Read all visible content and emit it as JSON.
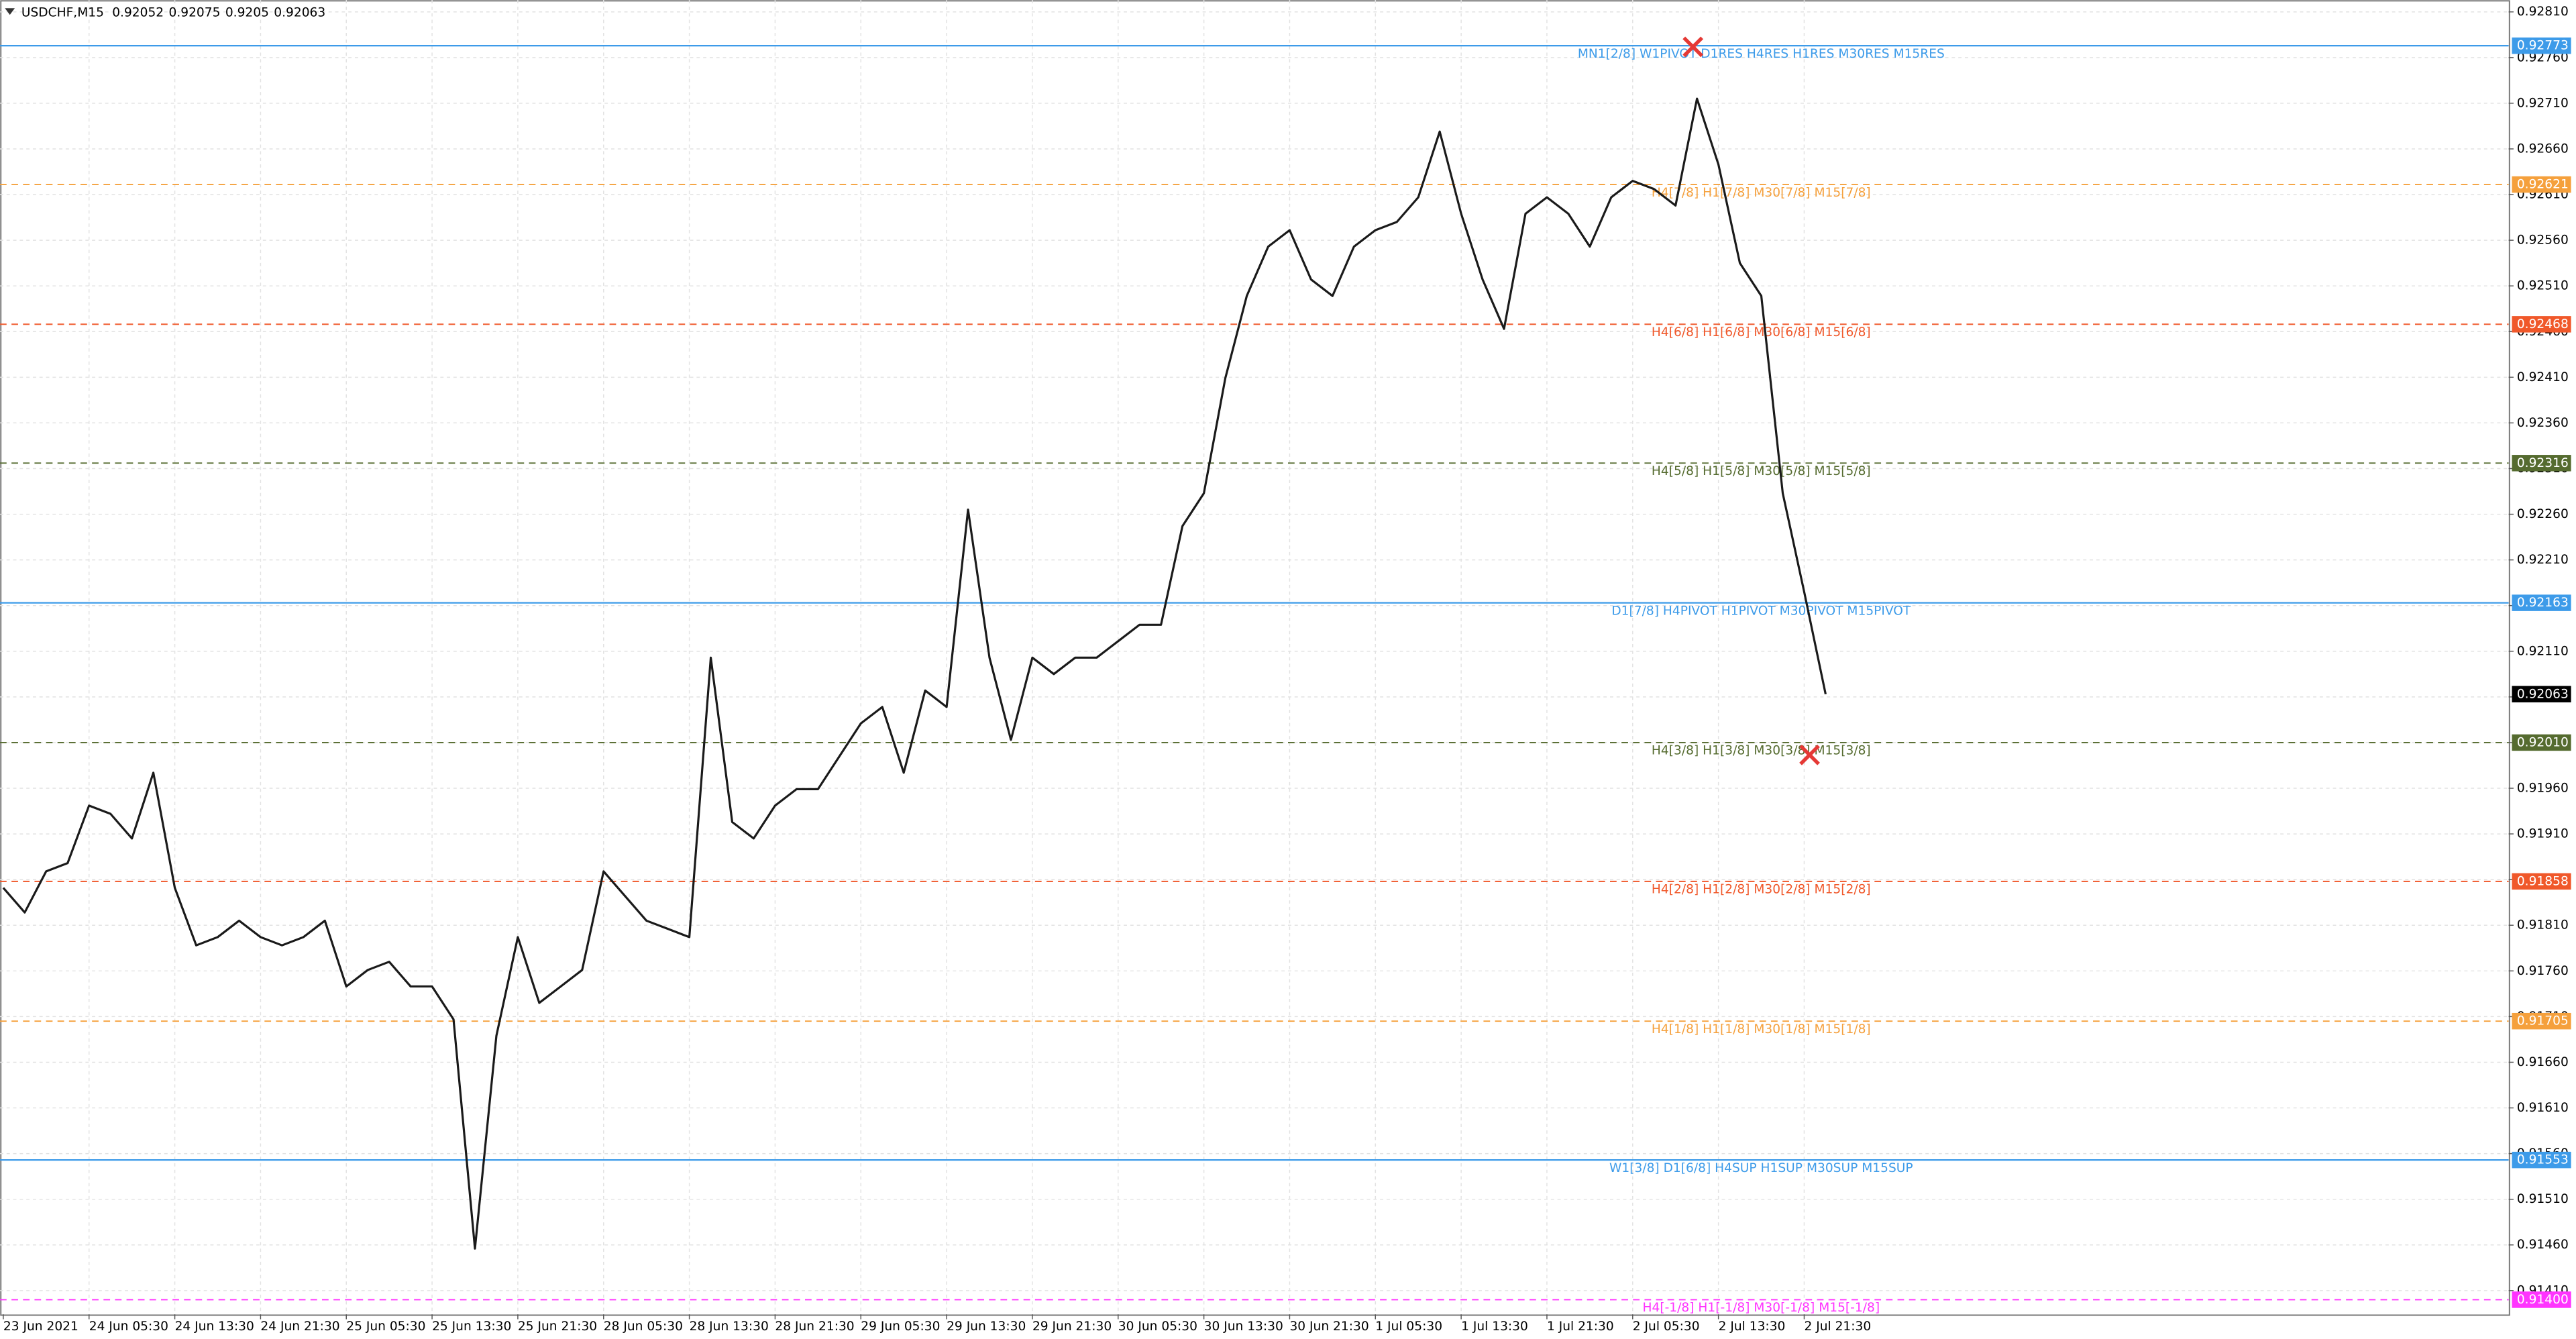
{
  "chart_data": {
    "type": "line",
    "symbol": "USDCHF,M15",
    "ohlc": [
      0.92052,
      0.92075,
      0.9205,
      0.92063
    ],
    "categories": [
      "23 Jun 2021",
      null,
      null,
      null,
      "24 Jun 05:30",
      null,
      null,
      null,
      "24 Jun 13:30",
      null,
      null,
      null,
      "24 Jun 21:30",
      null,
      null,
      null,
      "25 Jun 05:30",
      null,
      null,
      null,
      "25 Jun 13:30",
      null,
      null,
      null,
      "25 Jun 21:30",
      null,
      null,
      null,
      "28 Jun 05:30",
      null,
      null,
      null,
      "28 Jun 13:30",
      null,
      null,
      null,
      "28 Jun 21:30",
      null,
      null,
      null,
      "29 Jun 05:30",
      null,
      null,
      null,
      "29 Jun 13:30",
      null,
      null,
      null,
      "29 Jun 21:30",
      null,
      null,
      null,
      "30 Jun 05:30",
      null,
      null,
      null,
      "30 Jun 13:30",
      null,
      null,
      null,
      "30 Jun 21:30",
      null,
      null,
      null,
      "1 Jul 05:30",
      null,
      null,
      null,
      "1 Jul 13:30",
      null,
      null,
      null,
      "1 Jul 21:30",
      null,
      null,
      null,
      "2 Jul 05:30",
      null,
      null,
      null,
      "2 Jul 13:30",
      null,
      null,
      null,
      "2 Jul 21:30",
      null
    ],
    "series": [
      {
        "name": "USDCHF",
        "color": "#1a1a1a",
        "values": [
          0.91851,
          0.91824,
          0.91869,
          0.91878,
          0.91941,
          0.91932,
          0.91905,
          0.91977,
          0.91851,
          0.91788,
          0.91797,
          0.91815,
          0.91797,
          0.91788,
          0.91797,
          0.91815,
          0.91743,
          0.91761,
          0.9177,
          0.91743,
          0.91743,
          0.91707,
          0.91456,
          0.91689,
          0.91797,
          0.91725,
          0.91743,
          0.91761,
          0.91869,
          0.91842,
          0.91815,
          0.91806,
          0.91797,
          0.92103,
          0.91923,
          0.91905,
          0.91941,
          0.91959,
          0.91959,
          0.91995,
          0.92031,
          0.92049,
          0.91977,
          0.92067,
          0.92049,
          0.92265,
          0.92103,
          0.92013,
          0.92103,
          0.92085,
          0.92103,
          0.92103,
          0.92121,
          0.92139,
          0.92139,
          0.92247,
          0.92283,
          0.92409,
          0.92499,
          0.92553,
          0.92571,
          0.92517,
          0.92499,
          0.92553,
          0.92571,
          0.9258,
          0.92607,
          0.92679,
          0.92589,
          0.92517,
          0.92463,
          0.92589,
          0.92607,
          0.92589,
          0.92553,
          0.92607,
          0.92625,
          0.92616,
          0.92598,
          0.92715,
          0.92643,
          0.92535,
          0.92499,
          0.92283,
          0.92175,
          0.92063
        ]
      }
    ],
    "ylim": [
      0.91384,
      0.92823
    ],
    "yticks": [
      {
        "value": 0.9141,
        "label": "0.91410"
      },
      {
        "value": 0.9146,
        "label": "0.91460"
      },
      {
        "value": 0.9151,
        "label": "0.91510"
      },
      {
        "value": 0.9156,
        "label": "0.91560"
      },
      {
        "value": 0.9161,
        "label": "0.91610"
      },
      {
        "value": 0.9166,
        "label": "0.91660"
      },
      {
        "value": 0.9171,
        "label": "0.91710"
      },
      {
        "value": 0.9176,
        "label": "0.91760"
      },
      {
        "value": 0.9181,
        "label": "0.91810"
      },
      {
        "value": 0.9186,
        "label": "0.91860"
      },
      {
        "value": 0.9191,
        "label": "0.91910"
      },
      {
        "value": 0.9196,
        "label": "0.91960"
      },
      {
        "value": 0.9201,
        "label": "0.92010"
      },
      {
        "value": 0.9206,
        "label": "0.92060"
      },
      {
        "value": 0.9211,
        "label": "0.92110"
      },
      {
        "value": 0.9216,
        "label": "0.92160"
      },
      {
        "value": 0.9221,
        "label": "0.92210"
      },
      {
        "value": 0.9226,
        "label": "0.92260"
      },
      {
        "value": 0.9231,
        "label": "0.92310"
      },
      {
        "value": 0.9236,
        "label": "0.92360"
      },
      {
        "value": 0.9241,
        "label": "0.92410"
      },
      {
        "value": 0.9246,
        "label": "0.92460"
      },
      {
        "value": 0.9251,
        "label": "0.92510"
      },
      {
        "value": 0.9256,
        "label": "0.92560"
      },
      {
        "value": 0.9261,
        "label": "0.92610"
      },
      {
        "value": 0.9266,
        "label": "0.92660"
      },
      {
        "value": 0.9271,
        "label": "0.92710"
      },
      {
        "value": 0.9276,
        "label": "0.92760"
      },
      {
        "value": 0.9281,
        "label": "0.92810"
      }
    ],
    "grid": true,
    "levels": [
      {
        "price": 0.92773,
        "label": "MN1[2/8] W1PIVOT D1RES H4RES H1RES M30RES M15RES",
        "color": "#3d9be9",
        "style": "solid"
      },
      {
        "price": 0.92621,
        "label": "H4[7/8] H1[7/8] M30[7/8] M15[7/8]",
        "color": "#f5a03c",
        "style": "dashed"
      },
      {
        "price": 0.92468,
        "label": "H4[6/8] H1[6/8] M30[6/8] M15[6/8]",
        "color": "#f0582a",
        "style": "dashed"
      },
      {
        "price": 0.92316,
        "label": "H4[5/8] H1[5/8] M30[5/8] M15[5/8]",
        "color": "#556b2f",
        "style": "dashed"
      },
      {
        "price": 0.92163,
        "label": "D1[7/8] H4PIVOT H1PIVOT M30PIVOT M15PIVOT",
        "color": "#3d9be9",
        "style": "solid"
      },
      {
        "price": 0.9201,
        "label": "H4[3/8] H1[3/8] M30[3/8] M15[3/8]",
        "color": "#556b2f",
        "style": "dashed",
        "tag": "0.92010"
      },
      {
        "price": 0.91858,
        "label": "H4[2/8] H1[2/8] M30[2/8] M15[2/8]",
        "color": "#f0582a",
        "style": "dashed"
      },
      {
        "price": 0.91705,
        "label": "H4[1/8] H1[1/8] M30[1/8] M15[1/8]",
        "color": "#f5a03c",
        "style": "dashed"
      },
      {
        "price": 0.91553,
        "label": "W1[3/8] D1[6/8] H4SUP H1SUP M30SUP M15SUP",
        "color": "#3d9be9",
        "style": "solid"
      },
      {
        "price": 0.914,
        "label": "H4[-1/8] H1[-1/8] M30[-1/8] M15[-1/8]",
        "color": "#ff33ff",
        "style": "dashed",
        "tag": "0.91400"
      }
    ],
    "last_price": 0.92063
  }
}
